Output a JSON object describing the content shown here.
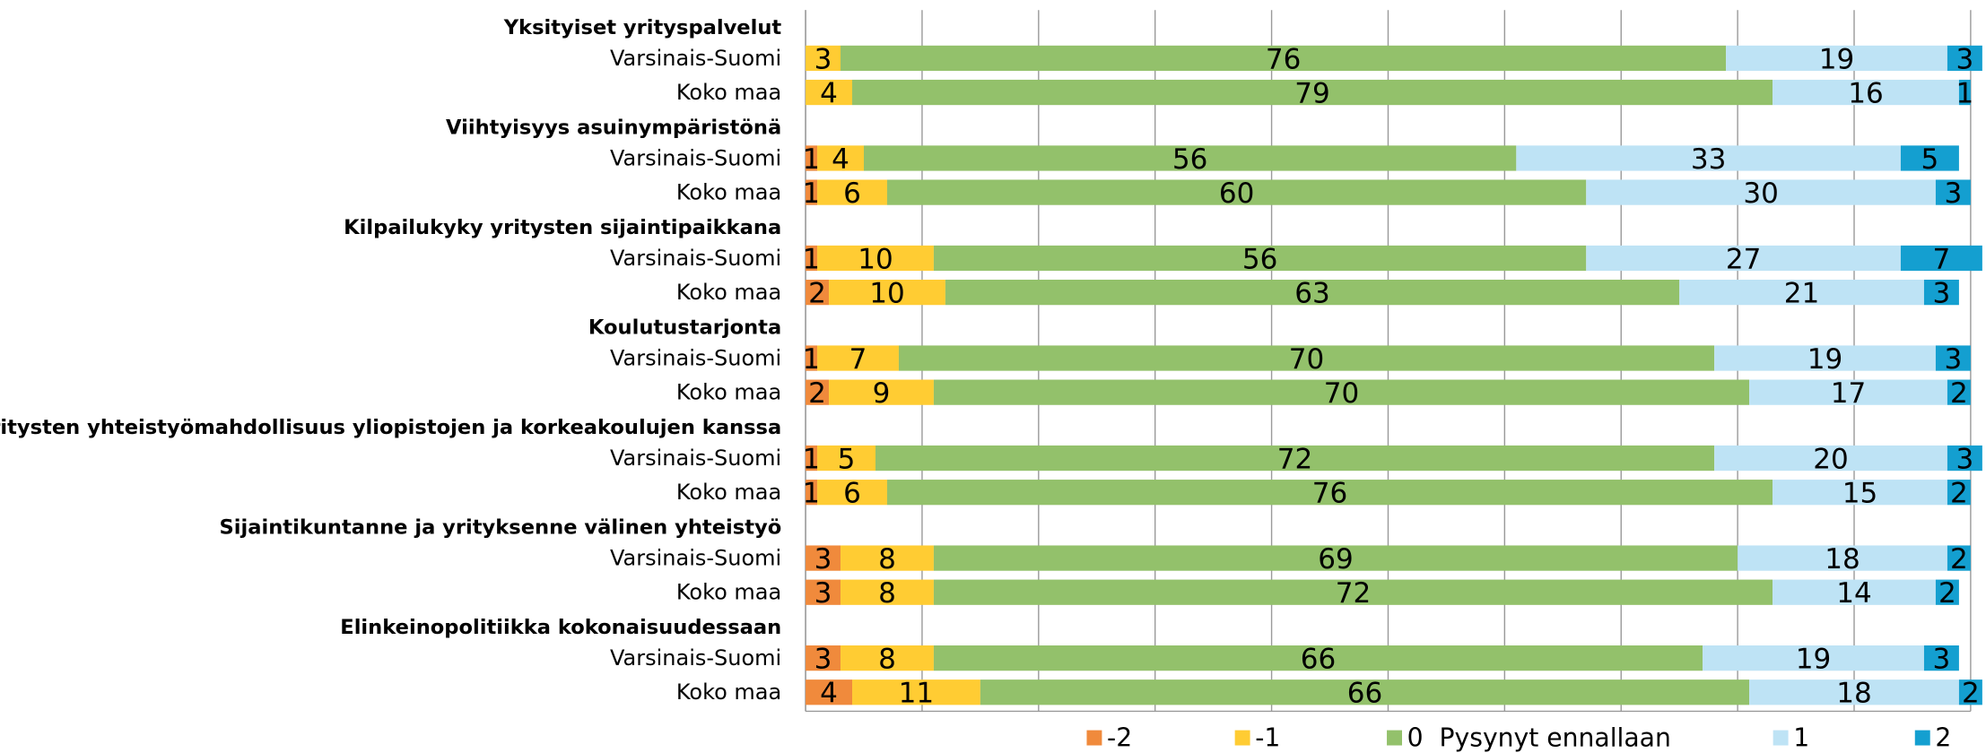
{
  "chart_data": {
    "type": "stacked_bar_horizontal",
    "groups": [
      "Yksityiset yrityspalvelut",
      "Viihtyisyys asuinympäristönä",
      "Kilpailukyky yritysten sijaintipaikkana",
      "Koulutustarjonta",
      "Yritysten yhteistyömahdollisuus yliopistojen ja korkeakoulujen kanssa",
      "Sijaintikuntanne ja yrityksenne välinen yhteistyö",
      "Elinkeinopolitiikka kokonaisuudessaan"
    ],
    "categories": [
      "Varsinais-Suomi",
      "Koko maa",
      "Varsinais-Suomi",
      "Koko maa",
      "Varsinais-Suomi",
      "Koko maa",
      "Varsinais-Suomi",
      "Koko maa",
      "Varsinais-Suomi",
      "Koko maa",
      "Varsinais-Suomi",
      "Koko maa",
      "Varsinais-Suomi",
      "Koko maa"
    ],
    "series": [
      {
        "name": "-2",
        "color": "#f08a3c",
        "values": [
          0,
          0,
          1,
          1,
          1,
          2,
          1,
          2,
          1,
          1,
          3,
          3,
          3,
          4
        ]
      },
      {
        "name": "-1",
        "color": "#ffcc33",
        "values": [
          3,
          4,
          4,
          6,
          10,
          10,
          7,
          9,
          5,
          6,
          8,
          8,
          8,
          11
        ]
      },
      {
        "name": "0  Pysynyt ennallaan",
        "color": "#93c16b",
        "values": [
          76,
          79,
          56,
          60,
          56,
          63,
          70,
          70,
          72,
          76,
          69,
          72,
          66,
          66
        ]
      },
      {
        "name": "1",
        "color": "#bee3f5",
        "values": [
          19,
          16,
          33,
          30,
          27,
          21,
          19,
          17,
          20,
          15,
          18,
          14,
          19,
          18
        ]
      },
      {
        "name": "2",
        "color": "#149fd0",
        "values": [
          3,
          1,
          5,
          3,
          7,
          3,
          3,
          2,
          3,
          2,
          2,
          2,
          3,
          2
        ]
      }
    ],
    "xlim": [
      0,
      100
    ],
    "xticks": [
      0,
      10,
      20,
      30,
      40,
      50,
      60,
      70,
      80,
      90,
      100
    ],
    "grid": true,
    "legend": "bottom"
  }
}
